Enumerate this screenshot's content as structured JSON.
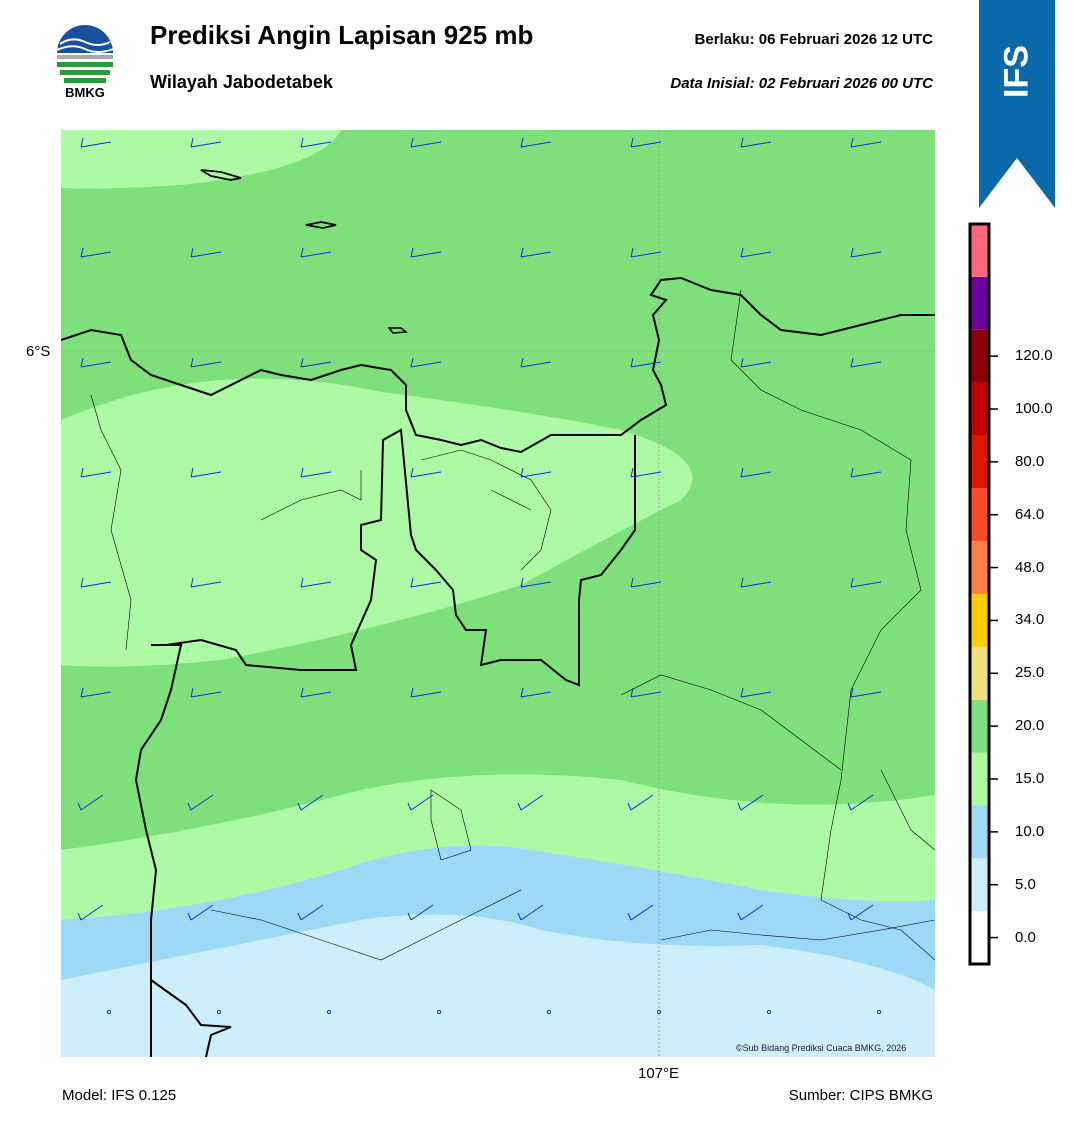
{
  "header": {
    "title": "Prediksi Angin Lapisan 925 mb",
    "region": "Wilayah Jabodetabek",
    "valid": "Berlaku:  06 Februari 2026 12 UTC",
    "initial": "Data Inisial:  02 Februari 2026 00 UTC"
  },
  "logo": {
    "text": "BMKG"
  },
  "ribbon": {
    "label": "IFS",
    "color": "#0a69aa"
  },
  "map": {
    "lat_label": "6°S",
    "lon_label": "107°E",
    "copyright": "©Sub Bidang Prediksi Cuaca BMKG, 2026",
    "band_colors": {
      "calm": "#cdeffc",
      "light": "#9cd9f6",
      "moderate": "#acfba4",
      "fresh": "#7ee07b"
    },
    "barb_color": "#1030e0"
  },
  "colorbar": {
    "colors": [
      "#ffffff",
      "#cdeffc",
      "#9cd9f6",
      "#acfba4",
      "#7ee07b",
      "#eee27a",
      "#ffcc00",
      "#ff8045",
      "#fa4a2a",
      "#dd1600",
      "#c30000",
      "#8b0000",
      "#6c009d",
      "#ff6680"
    ],
    "labels": [
      "0.0",
      "5.0",
      "10.0",
      "15.0",
      "20.0",
      "25.0",
      "34.0",
      "48.0",
      "64.0",
      "80.0",
      "100.0",
      "120.0"
    ]
  },
  "footer": {
    "model": "Model: IFS 0.125",
    "source": "Sumber: CIPS BMKG"
  }
}
